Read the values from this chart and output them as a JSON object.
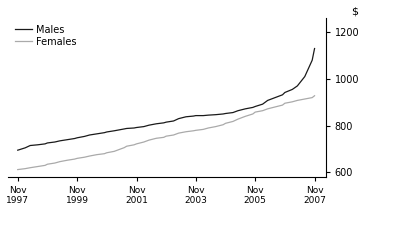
{
  "title": "",
  "ylabel_right": "$",
  "ylim": [
    580,
    1260
  ],
  "yticks": [
    600,
    800,
    1000,
    1200
  ],
  "xtick_years": [
    1997,
    1999,
    2001,
    2003,
    2005,
    2007
  ],
  "xtick_labels": [
    "Nov\n1997",
    "Nov\n1999",
    "Nov\n2001",
    "Nov\n2003",
    "Nov\n2005",
    "Nov\n2007"
  ],
  "legend_labels": [
    "Males",
    "Females"
  ],
  "males_color": "#1a1a1a",
  "females_color": "#aaaaaa",
  "background_color": "#ffffff",
  "males_data": {
    "x": [
      1997.83,
      1998.08,
      1998.25,
      1998.5,
      1998.75,
      1998.83,
      1999.08,
      1999.25,
      1999.5,
      1999.75,
      1999.83,
      2000.08,
      2000.25,
      2000.5,
      2000.75,
      2000.83,
      2001.08,
      2001.25,
      2001.42,
      2001.5,
      2001.75,
      2001.83,
      2002.08,
      2002.25,
      2002.5,
      2002.75,
      2002.83,
      2003.08,
      2003.25,
      2003.5,
      2003.75,
      2003.83,
      2004.08,
      2004.25,
      2004.5,
      2004.75,
      2004.83,
      2005.08,
      2005.25,
      2005.5,
      2005.75,
      2005.83,
      2006.08,
      2006.25,
      2006.5,
      2006.75,
      2006.83,
      2007.08,
      2007.25,
      2007.5,
      2007.75,
      2007.83
    ],
    "y": [
      695,
      705,
      715,
      718,
      722,
      726,
      730,
      735,
      740,
      745,
      748,
      754,
      760,
      765,
      770,
      773,
      778,
      782,
      786,
      788,
      790,
      792,
      796,
      802,
      808,
      812,
      815,
      820,
      830,
      838,
      841,
      843,
      843,
      845,
      847,
      850,
      852,
      856,
      864,
      872,
      878,
      882,
      892,
      908,
      920,
      932,
      942,
      955,
      970,
      1010,
      1080,
      1130
    ]
  },
  "females_data": {
    "x": [
      1997.83,
      1998.08,
      1998.25,
      1998.5,
      1998.75,
      1998.83,
      1999.08,
      1999.25,
      1999.5,
      1999.75,
      1999.83,
      2000.08,
      2000.25,
      2000.5,
      2000.75,
      2000.83,
      2001.08,
      2001.25,
      2001.42,
      2001.5,
      2001.75,
      2001.83,
      2002.08,
      2002.25,
      2002.5,
      2002.75,
      2002.83,
      2003.08,
      2003.25,
      2003.5,
      2003.75,
      2003.83,
      2004.08,
      2004.25,
      2004.5,
      2004.75,
      2004.83,
      2005.08,
      2005.25,
      2005.5,
      2005.75,
      2005.83,
      2006.08,
      2006.25,
      2006.5,
      2006.75,
      2006.83,
      2007.08,
      2007.25,
      2007.5,
      2007.75,
      2007.83
    ],
    "y": [
      612,
      616,
      620,
      625,
      630,
      635,
      640,
      646,
      652,
      657,
      660,
      665,
      670,
      676,
      680,
      684,
      690,
      698,
      706,
      712,
      718,
      722,
      730,
      738,
      746,
      750,
      755,
      760,
      768,
      774,
      778,
      780,
      784,
      790,
      796,
      804,
      810,
      818,
      828,
      840,
      850,
      858,
      864,
      872,
      880,
      888,
      896,
      902,
      908,
      914,
      920,
      928
    ]
  }
}
